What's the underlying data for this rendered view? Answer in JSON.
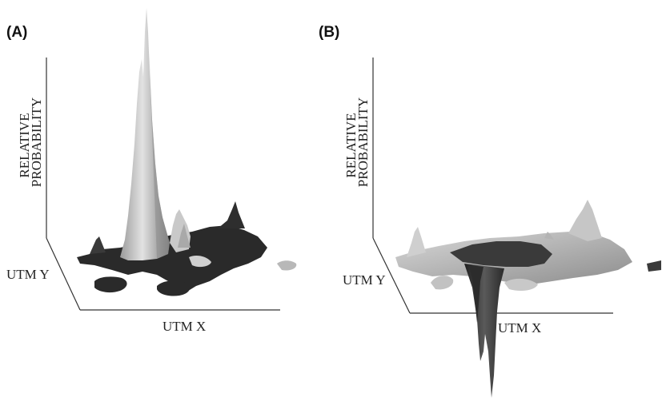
{
  "chart_data": [
    {
      "type": "surface",
      "panel_label": "(A)",
      "xlabel": "UTM X",
      "ylabel": "UTM Y",
      "zlabel_lines": [
        "RELATIVE",
        "PROBABILITY"
      ],
      "colors": {
        "surface_light": "#c4c4c4",
        "surface_dark": "#2a2a2a",
        "axis": "#333333"
      }
    },
    {
      "type": "surface",
      "panel_label": "(B)",
      "xlabel": "UTM X",
      "ylabel": "UTM Y",
      "zlabel_lines": [
        "RELATIVE",
        "PROBABILITY"
      ],
      "colors": {
        "surface_light": "#bdbdbd",
        "surface_dark": "#3a3a3a",
        "axis": "#333333"
      }
    }
  ]
}
